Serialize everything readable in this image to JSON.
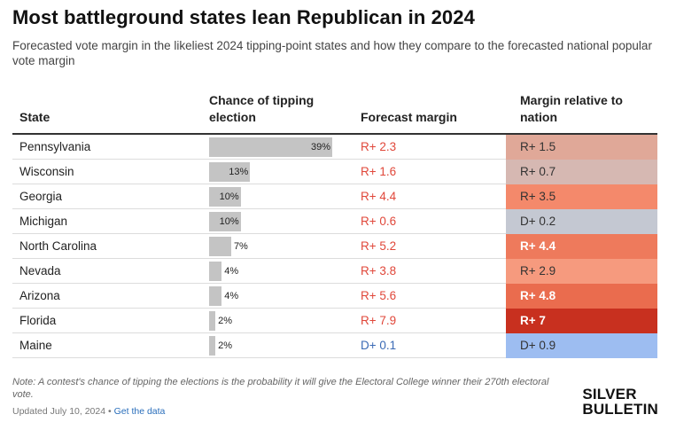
{
  "header": {
    "title": "Most battleground states lean Republican in 2024",
    "subtitle": "Forecasted vote margin in the likeliest 2024 tipping-point states and how they compare to the forecasted national popular vote margin"
  },
  "table": {
    "columns": {
      "state": "State",
      "chance": "Chance of tipping election",
      "margin": "Forecast margin",
      "relative": "Margin relative to nation"
    },
    "rows": [
      {
        "state": "Pennsylvania",
        "chance_label": "39%",
        "chance": 39,
        "margin": "R+ 2.3",
        "relative": "R+ 1.5",
        "rel_color": "#e0a898",
        "margin_color": "#e0473a",
        "rel_text": "#333",
        "rel_bold": false
      },
      {
        "state": "Wisconsin",
        "chance_label": "13%",
        "chance": 13,
        "margin": "R+ 1.6",
        "relative": "R+ 0.7",
        "rel_color": "#d6b8b2",
        "margin_color": "#e0473a",
        "rel_text": "#333",
        "rel_bold": false
      },
      {
        "state": "Georgia",
        "chance_label": "10%",
        "chance": 10,
        "margin": "R+ 4.4",
        "relative": "R+ 3.5",
        "rel_color": "#f4896b",
        "margin_color": "#e0473a",
        "rel_text": "#333",
        "rel_bold": false
      },
      {
        "state": "Michigan",
        "chance_label": "10%",
        "chance": 10,
        "margin": "R+ 0.6",
        "relative": "D+ 0.2",
        "rel_color": "#c4c8d2",
        "margin_color": "#e0473a",
        "rel_text": "#333",
        "rel_bold": false
      },
      {
        "state": "North Carolina",
        "chance_label": "7%",
        "chance": 7,
        "margin": "R+ 5.2",
        "relative": "R+ 4.4",
        "rel_color": "#ee7a5c",
        "margin_color": "#e0473a",
        "rel_text": "#ffffff",
        "rel_bold": true
      },
      {
        "state": "Nevada",
        "chance_label": "4%",
        "chance": 4,
        "margin": "R+ 3.8",
        "relative": "R+ 2.9",
        "rel_color": "#f69a7e",
        "margin_color": "#e0473a",
        "rel_text": "#333",
        "rel_bold": false
      },
      {
        "state": "Arizona",
        "chance_label": "4%",
        "chance": 4,
        "margin": "R+ 5.6",
        "relative": "R+ 4.8",
        "rel_color": "#ea6c4e",
        "margin_color": "#e0473a",
        "rel_text": "#ffffff",
        "rel_bold": true
      },
      {
        "state": "Florida",
        "chance_label": "2%",
        "chance": 2,
        "margin": "R+ 7.9",
        "relative": "R+ 7",
        "rel_color": "#c8301f",
        "margin_color": "#e0473a",
        "rel_text": "#ffffff",
        "rel_bold": true
      },
      {
        "state": "Maine",
        "chance_label": "2%",
        "chance": 2,
        "margin": "D+ 0.1",
        "relative": "D+ 0.9",
        "rel_color": "#9dbdf1",
        "margin_color": "#3a6ab5",
        "rel_text": "#333",
        "rel_bold": false
      }
    ]
  },
  "footer": {
    "note": "Note: A contest's chance of tipping the elections is the probability it will give the Electoral College winner their 270th electoral vote.",
    "updated": "Updated July 10, 2024",
    "separator": "•",
    "link": "Get the data",
    "logo_line1": "SILVER",
    "logo_line2": "BULLETIN"
  }
}
